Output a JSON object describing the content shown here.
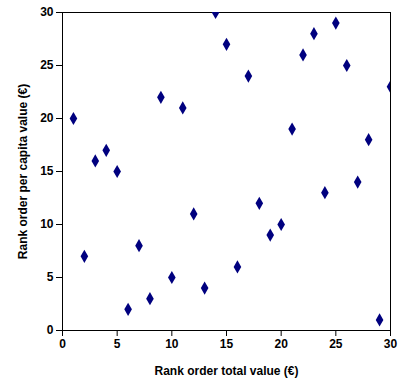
{
  "chart_data": {
    "type": "scatter",
    "x_label": "Rank order total value (€)",
    "y_label": "Rank order per capita value (€)",
    "x": [
      1,
      2,
      3,
      4,
      5,
      6,
      7,
      8,
      9,
      10,
      11,
      12,
      13,
      14,
      15,
      16,
      17,
      18,
      19,
      20,
      21,
      22,
      23,
      24,
      25,
      26,
      27,
      28,
      29,
      30
    ],
    "values": [
      20,
      7,
      16,
      17,
      15,
      2,
      8,
      3,
      22,
      5,
      21,
      11,
      4,
      30,
      27,
      6,
      24,
      12,
      9,
      10,
      19,
      26,
      28,
      13,
      29,
      25,
      14,
      18,
      1,
      23
    ],
    "color": "#00007f",
    "marker": "diamond",
    "xlim": [
      0,
      30
    ],
    "xticks": [
      0,
      5,
      10,
      15,
      20,
      25,
      30
    ],
    "ylim": [
      0,
      30
    ],
    "yticks": [
      0,
      5,
      10,
      15,
      20,
      25,
      30
    ],
    "grid": false
  }
}
